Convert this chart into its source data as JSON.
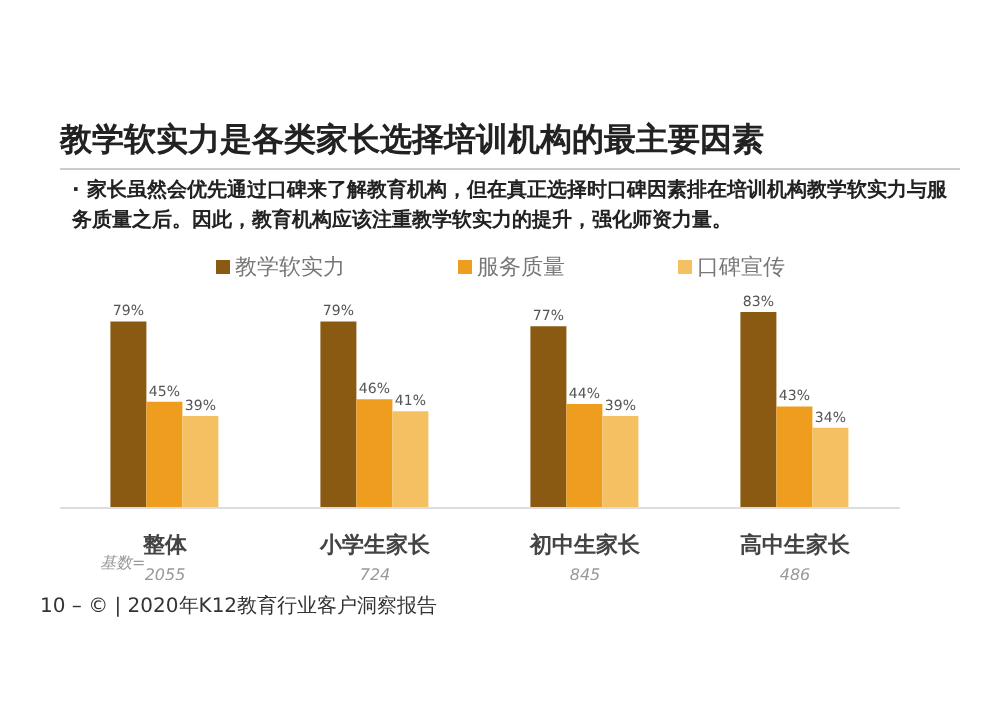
{
  "chart_data": {
    "type": "bar",
    "title": "教学软实力是各类家长选择培训机构的最主要因素",
    "subtitle": "· 家长虽然会优先通过口碑来了解教育机构，但在真正选择时口碑因素排在培训机构教学软实力与服务质量之后。因此，教育机构应该注重教学软实力的提升，强化师资力量。",
    "categories": [
      "整体",
      "小学生家长",
      "初中生家长",
      "高中生家长"
    ],
    "series": [
      {
        "name": "教学软实力",
        "color": "#8b5a12",
        "values": [
          79,
          79,
          77,
          83
        ],
        "value_labels": [
          "79%",
          "79%",
          "77%",
          "83%"
        ]
      },
      {
        "name": "服务质量",
        "color": "#ef9d1f",
        "values": [
          45,
          46,
          44,
          43
        ],
        "value_labels": [
          "45%",
          "46%",
          "44%",
          "43%"
        ]
      },
      {
        "name": "口碑宣传",
        "color": "#f5c062",
        "values": [
          39,
          41,
          39,
          34
        ],
        "value_labels": [
          "39%",
          "41%",
          "39%",
          "34%"
        ]
      }
    ],
    "legend": "top",
    "grid": false,
    "annotations": [
      "基数=",
      "10 – © | 2020年K12教育行业客户洞察报告",
      "2055",
      "724",
      "845",
      "486"
    ]
  }
}
